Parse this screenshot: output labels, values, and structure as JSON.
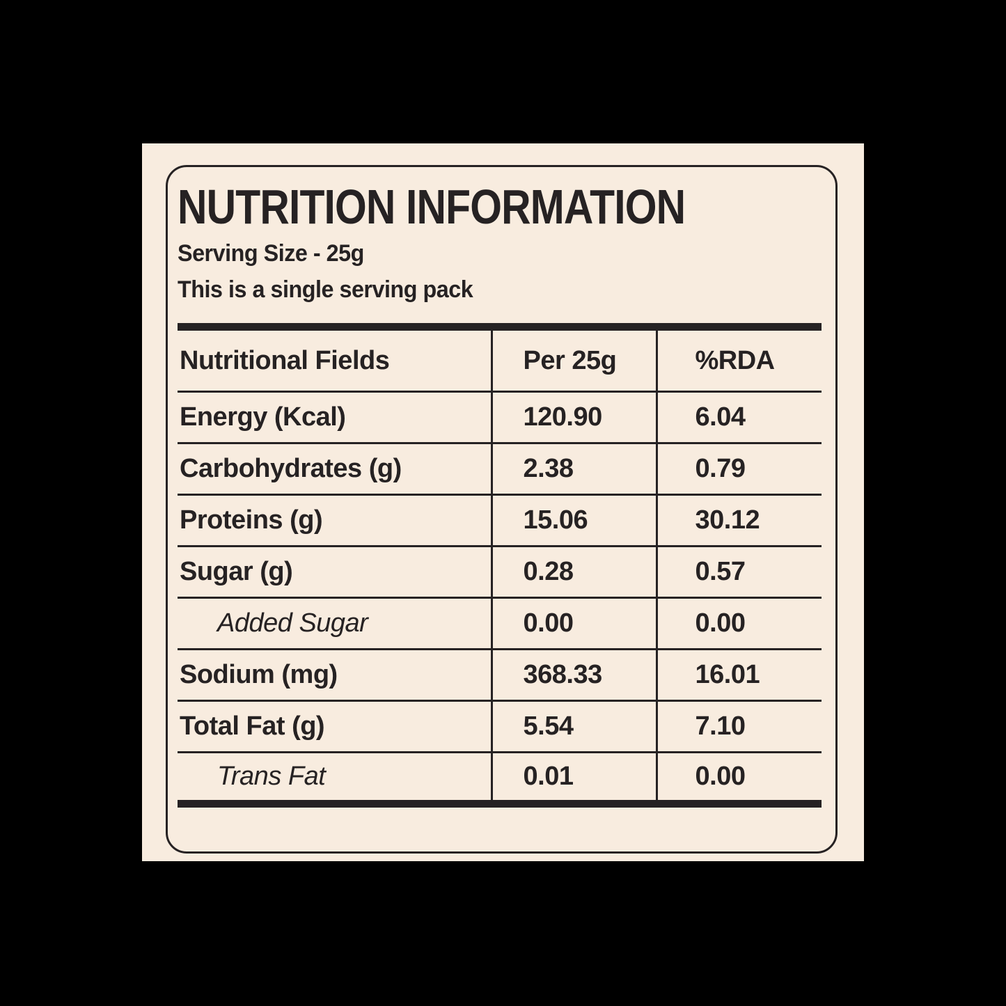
{
  "label": {
    "title": "NUTRITION INFORMATION",
    "serving_size": "Serving Size - 25g",
    "serving_note": "This is a single serving pack",
    "colors": {
      "background": "#000000",
      "panel": "#f8ecdf",
      "ink": "#262223"
    },
    "table": {
      "columns": [
        "Nutritional Fields",
        "Per 25g",
        "%RDA"
      ],
      "rows": [
        {
          "label": "Energy (Kcal)",
          "per_25g": "120.90",
          "rda": "6.04",
          "indent": false
        },
        {
          "label": "Carbohydrates (g)",
          "per_25g": "2.38",
          "rda": "0.79",
          "indent": false
        },
        {
          "label": "Proteins (g)",
          "per_25g": "15.06",
          "rda": "30.12",
          "indent": false
        },
        {
          "label": "Sugar (g)",
          "per_25g": "0.28",
          "rda": "0.57",
          "indent": false
        },
        {
          "label": "Added Sugar",
          "per_25g": "0.00",
          "rda": "0.00",
          "indent": true
        },
        {
          "label": "Sodium (mg)",
          "per_25g": "368.33",
          "rda": "16.01",
          "indent": false
        },
        {
          "label": "Total Fat (g)",
          "per_25g": "5.54",
          "rda": "7.10",
          "indent": false
        },
        {
          "label": "Trans Fat",
          "per_25g": "0.01",
          "rda": "0.00",
          "indent": true
        }
      ]
    }
  }
}
